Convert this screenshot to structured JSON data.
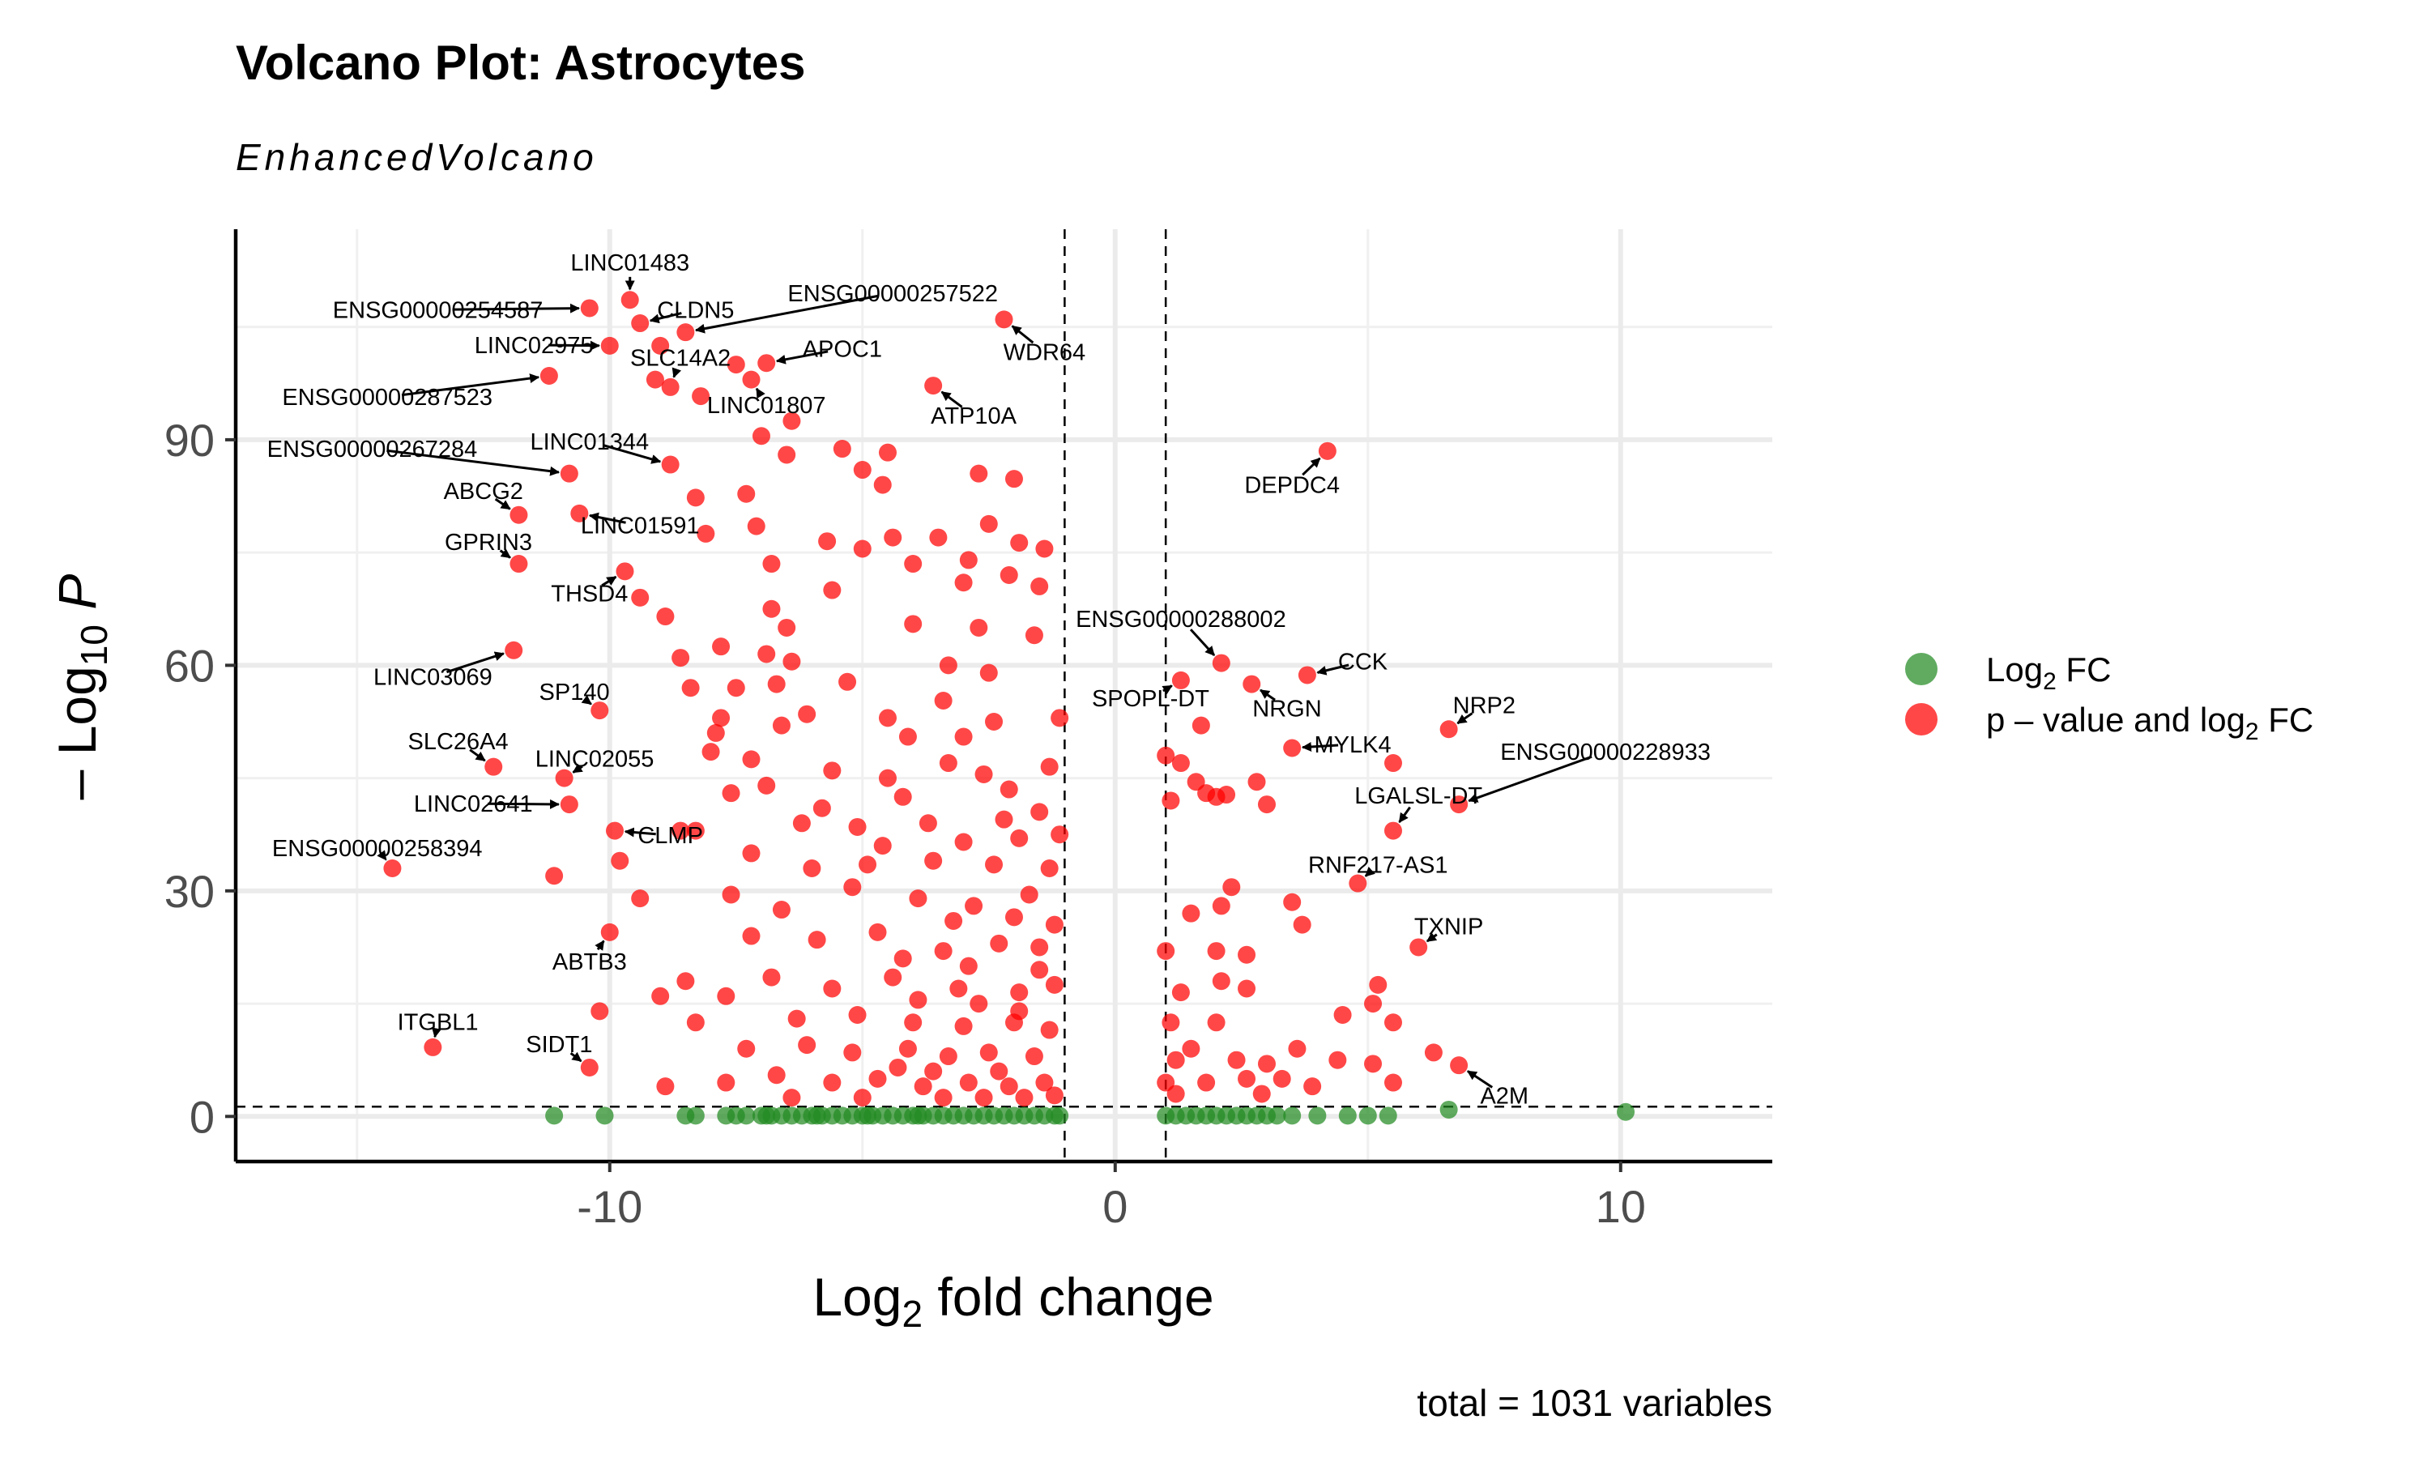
{
  "chart_data": {
    "type": "scatter",
    "title": "Volcano Plot: Astrocytes",
    "subtitle": "EnhancedVolcano",
    "xlabel": {
      "prefix": "Log",
      "sub": "2",
      "suffix": " fold change"
    },
    "ylabel": {
      "prefix": "– Log",
      "sub": "10",
      "suffix": "P"
    },
    "caption": "total = 1031 variables",
    "xlim": [
      -17.4,
      13
    ],
    "ylim": [
      -6,
      118
    ],
    "xticks": [
      -10,
      0,
      10
    ],
    "xtick_labels": [
      "-10",
      "0",
      "10"
    ],
    "yticks": [
      0,
      30,
      60,
      90
    ],
    "ytick_labels": [
      "0",
      "30",
      "60",
      "90"
    ],
    "grid": true,
    "fc_cutoff": 1,
    "p_cutoff": 1.3,
    "legend_position": "right",
    "legend": [
      {
        "label_prefix": "Log",
        "label_sub": "2",
        "label_suffix": " FC",
        "color": "#228B22"
      },
      {
        "label_prefix": "p – value and log",
        "label_sub": "2",
        "label_suffix": " FC",
        "color": "#FF0000"
      }
    ],
    "colors": {
      "fc_only": "#228B22",
      "significant": "#FF0000"
    },
    "labeled_genes": [
      {
        "name": "LINC01483",
        "x": -9.6,
        "y": 108.6,
        "lx": -9.6,
        "ly": 113.6
      },
      {
        "name": "ENSG00000254587",
        "x": -10.4,
        "y": 107.5,
        "lx": -13.4,
        "ly": 107.3
      },
      {
        "name": "CLDN5",
        "x": -9.4,
        "y": 105.5,
        "lx": -8.3,
        "ly": 107.3
      },
      {
        "name": "ENSG00000257522",
        "x": -8.5,
        "y": 104.3,
        "lx": -4.4,
        "ly": 109.5
      },
      {
        "name": "WDR64",
        "x": -2.2,
        "y": 106.0,
        "lx": -1.4,
        "ly": 101.7
      },
      {
        "name": "LINC02975",
        "x": -10.0,
        "y": 102.5,
        "lx": -11.5,
        "ly": 102.6
      },
      {
        "name": "SLC14A2",
        "x": -8.8,
        "y": 97.0,
        "lx": -8.6,
        "ly": 100.9
      },
      {
        "name": "APOC1",
        "x": -6.9,
        "y": 100.2,
        "lx": -5.4,
        "ly": 102.1
      },
      {
        "name": "ENSG00000287523",
        "x": -11.2,
        "y": 98.5,
        "lx": -14.4,
        "ly": 95.7
      },
      {
        "name": "LINC01807",
        "x": -7.2,
        "y": 98.0,
        "lx": -6.9,
        "ly": 94.6
      },
      {
        "name": "ATP10A",
        "x": -3.6,
        "y": 97.2,
        "lx": -2.8,
        "ly": 93.2
      },
      {
        "name": "ENSG00000267284",
        "x": -10.8,
        "y": 85.5,
        "lx": -14.7,
        "ly": 88.8
      },
      {
        "name": "LINC01344",
        "x": -8.8,
        "y": 86.7,
        "lx": -10.4,
        "ly": 89.8
      },
      {
        "name": "DEPDC4",
        "x": 4.2,
        "y": 88.5,
        "lx": 3.5,
        "ly": 84.0
      },
      {
        "name": "ABCG2",
        "x": -11.8,
        "y": 80.0,
        "lx": -12.5,
        "ly": 83.2
      },
      {
        "name": "LINC01591",
        "x": -10.6,
        "y": 80.2,
        "lx": -9.4,
        "ly": 78.6
      },
      {
        "name": "GPRIN3",
        "x": -11.8,
        "y": 73.5,
        "lx": -12.4,
        "ly": 76.4
      },
      {
        "name": "THSD4",
        "x": -9.7,
        "y": 72.5,
        "lx": -10.4,
        "ly": 69.6
      },
      {
        "name": "ENSG00000288002",
        "x": 2.1,
        "y": 60.3,
        "lx": 1.3,
        "ly": 66.2
      },
      {
        "name": "CCK",
        "x": 3.8,
        "y": 58.7,
        "lx": 4.9,
        "ly": 60.5
      },
      {
        "name": "LINC03069",
        "x": -11.9,
        "y": 62.0,
        "lx": -13.5,
        "ly": 58.5
      },
      {
        "name": "SP140",
        "x": -10.2,
        "y": 54.0,
        "lx": -10.7,
        "ly": 56.5
      },
      {
        "name": "SPOPL-DT",
        "x": 1.3,
        "y": 58.0,
        "lx": 0.7,
        "ly": 55.6
      },
      {
        "name": "NRGN",
        "x": 2.7,
        "y": 57.5,
        "lx": 3.4,
        "ly": 54.3
      },
      {
        "name": "NRP2",
        "x": 6.6,
        "y": 51.5,
        "lx": 7.3,
        "ly": 54.7
      },
      {
        "name": "SLC26A4",
        "x": -12.3,
        "y": 46.5,
        "lx": -13.0,
        "ly": 49.9
      },
      {
        "name": "LINC02055",
        "x": -10.9,
        "y": 45.0,
        "lx": -10.3,
        "ly": 47.6
      },
      {
        "name": "MYLK4",
        "x": 3.5,
        "y": 49.0,
        "lx": 4.7,
        "ly": 49.5
      },
      {
        "name": "ENSG00000228933",
        "x": 6.8,
        "y": 41.5,
        "lx": 9.7,
        "ly": 48.5
      },
      {
        "name": "LINC02641",
        "x": -10.8,
        "y": 41.5,
        "lx": -12.7,
        "ly": 41.6
      },
      {
        "name": "LGALSL-DT",
        "x": 5.5,
        "y": 38.0,
        "lx": 6.0,
        "ly": 42.7
      },
      {
        "name": "CLMP",
        "x": -9.9,
        "y": 38.0,
        "lx": -8.8,
        "ly": 37.4
      },
      {
        "name": "ENSG00000258394",
        "x": -14.3,
        "y": 33.0,
        "lx": -14.6,
        "ly": 35.7
      },
      {
        "name": "RNF217-AS1",
        "x": 4.8,
        "y": 31.0,
        "lx": 5.2,
        "ly": 33.5
      },
      {
        "name": "TXNIP",
        "x": 6.0,
        "y": 22.5,
        "lx": 6.6,
        "ly": 25.3
      },
      {
        "name": "ABTB3",
        "x": -10.0,
        "y": 24.5,
        "lx": -10.4,
        "ly": 20.6
      },
      {
        "name": "ITGBL1",
        "x": -13.5,
        "y": 9.2,
        "lx": -13.4,
        "ly": 12.6
      },
      {
        "name": "SIDT1",
        "x": -10.4,
        "y": 6.5,
        "lx": -11.0,
        "ly": 9.6
      },
      {
        "name": "A2M",
        "x": 6.8,
        "y": 6.8,
        "lx": 7.7,
        "ly": 2.8
      }
    ],
    "unlabeled_points": {
      "note_significant_region": "remaining red points: |log2FC| > 1 and -log10 P > 1.3",
      "red_points": [
        [
          -9.0,
          102.5
        ],
        [
          -9.1,
          98.0
        ],
        [
          -8.2,
          95.8
        ],
        [
          -7.5,
          100.0
        ],
        [
          -6.4,
          92.5
        ],
        [
          -7.0,
          90.5
        ],
        [
          -5.4,
          88.8
        ],
        [
          -4.5,
          88.3
        ],
        [
          -5.0,
          86.0
        ],
        [
          -4.6,
          84.0
        ],
        [
          -2.7,
          85.5
        ],
        [
          -2.0,
          84.8
        ],
        [
          -6.5,
          88.0
        ],
        [
          -8.3,
          82.3
        ],
        [
          -7.3,
          82.8
        ],
        [
          -7.1,
          78.5
        ],
        [
          -5.7,
          76.5
        ],
        [
          -5.0,
          75.5
        ],
        [
          -4.4,
          77.0
        ],
        [
          -3.5,
          77.0
        ],
        [
          -2.5,
          78.8
        ],
        [
          -1.9,
          76.3
        ],
        [
          -1.4,
          75.5
        ],
        [
          -4.0,
          73.5
        ],
        [
          -2.9,
          74.0
        ],
        [
          -6.8,
          73.5
        ],
        [
          -8.1,
          77.5
        ],
        [
          -5.6,
          70.0
        ],
        [
          -3.0,
          71.0
        ],
        [
          -2.1,
          72.0
        ],
        [
          -1.5,
          70.5
        ],
        [
          -9.4,
          69.0
        ],
        [
          -8.9,
          66.5
        ],
        [
          -6.8,
          67.5
        ],
        [
          -6.5,
          65.0
        ],
        [
          -4.0,
          65.5
        ],
        [
          -2.7,
          65.0
        ],
        [
          -1.6,
          64.0
        ],
        [
          -3.3,
          60.0
        ],
        [
          -7.8,
          62.5
        ],
        [
          -6.9,
          61.5
        ],
        [
          -8.6,
          61.0
        ],
        [
          -6.4,
          60.5
        ],
        [
          -2.5,
          59.0
        ],
        [
          -8.4,
          57.0
        ],
        [
          -7.5,
          57.0
        ],
        [
          -6.7,
          57.5
        ],
        [
          -5.3,
          57.8
        ],
        [
          -3.4,
          55.3
        ],
        [
          -7.8,
          53.0
        ],
        [
          -6.1,
          53.5
        ],
        [
          -4.5,
          53.0
        ],
        [
          -2.4,
          52.5
        ],
        [
          -1.1,
          53.0
        ],
        [
          -7.9,
          51.0
        ],
        [
          -6.6,
          52.0
        ],
        [
          -4.1,
          50.5
        ],
        [
          -3.0,
          50.5
        ],
        [
          -8.0,
          48.5
        ],
        [
          -7.2,
          47.5
        ],
        [
          -5.6,
          46.0
        ],
        [
          -4.5,
          45.0
        ],
        [
          -3.3,
          47.0
        ],
        [
          -2.6,
          45.5
        ],
        [
          -1.3,
          46.5
        ],
        [
          -6.9,
          44.0
        ],
        [
          -5.8,
          41.0
        ],
        [
          -4.2,
          42.5
        ],
        [
          -2.1,
          43.5
        ],
        [
          -7.6,
          43.0
        ],
        [
          -8.3,
          38.0
        ],
        [
          -6.2,
          39.0
        ],
        [
          -5.1,
          38.5
        ],
        [
          -3.7,
          39.0
        ],
        [
          -2.2,
          39.5
        ],
        [
          -1.5,
          40.5
        ],
        [
          -9.8,
          34.0
        ],
        [
          -8.6,
          38.0
        ],
        [
          -7.2,
          35.0
        ],
        [
          -6.0,
          33.0
        ],
        [
          -4.9,
          33.5
        ],
        [
          -3.6,
          34.0
        ],
        [
          -2.4,
          33.5
        ],
        [
          -1.3,
          33.0
        ],
        [
          -9.4,
          29.0
        ],
        [
          -7.6,
          29.5
        ],
        [
          -6.6,
          27.5
        ],
        [
          -5.2,
          30.5
        ],
        [
          -3.9,
          29.0
        ],
        [
          -2.8,
          28.0
        ],
        [
          -1.7,
          29.5
        ],
        [
          -11.1,
          32.0
        ],
        [
          -7.2,
          24.0
        ],
        [
          -5.9,
          23.5
        ],
        [
          -4.7,
          24.5
        ],
        [
          -3.4,
          22.0
        ],
        [
          -2.3,
          23.0
        ],
        [
          -1.5,
          22.5
        ],
        [
          -8.5,
          18.0
        ],
        [
          -6.8,
          18.5
        ],
        [
          -5.6,
          17.0
        ],
        [
          -4.4,
          18.5
        ],
        [
          -3.1,
          17.0
        ],
        [
          -1.9,
          16.5
        ],
        [
          -1.2,
          17.5
        ],
        [
          -10.2,
          14.0
        ],
        [
          -9.0,
          16.0
        ],
        [
          -7.7,
          16.0
        ],
        [
          -6.3,
          13.0
        ],
        [
          -5.1,
          13.5
        ],
        [
          -4.0,
          12.5
        ],
        [
          -3.0,
          12.0
        ],
        [
          -2.0,
          12.5
        ],
        [
          -1.3,
          11.5
        ],
        [
          -8.3,
          12.5
        ],
        [
          -7.3,
          9.0
        ],
        [
          -6.1,
          9.5
        ],
        [
          -5.2,
          8.5
        ],
        [
          -4.1,
          9.0
        ],
        [
          -3.3,
          8.0
        ],
        [
          -2.5,
          8.5
        ],
        [
          -1.6,
          8.0
        ],
        [
          -8.9,
          4.0
        ],
        [
          -7.7,
          4.5
        ],
        [
          -6.7,
          5.5
        ],
        [
          -5.6,
          4.5
        ],
        [
          -4.7,
          5.0
        ],
        [
          -3.8,
          4.0
        ],
        [
          -2.9,
          4.5
        ],
        [
          -2.1,
          4.0
        ],
        [
          -1.4,
          4.5
        ],
        [
          -6.4,
          2.5
        ],
        [
          -5.0,
          2.5
        ],
        [
          -3.4,
          2.5
        ],
        [
          -2.6,
          2.5
        ],
        [
          -1.8,
          2.5
        ],
        [
          -1.2,
          2.8
        ],
        [
          -4.3,
          6.5
        ],
        [
          -3.6,
          6.0
        ],
        [
          -2.3,
          6.0
        ],
        [
          -1.9,
          14.0
        ],
        [
          -2.7,
          15.0
        ],
        [
          -3.9,
          15.5
        ],
        [
          -1.5,
          19.5
        ],
        [
          -2.9,
          20.0
        ],
        [
          -4.2,
          21.0
        ],
        [
          -1.2,
          25.5
        ],
        [
          -2.0,
          26.5
        ],
        [
          -3.2,
          26.0
        ],
        [
          -1.1,
          37.5
        ],
        [
          -1.9,
          37.0
        ],
        [
          -3.0,
          36.5
        ],
        [
          -4.6,
          36.0
        ],
        [
          1.0,
          48.0
        ],
        [
          1.3,
          47.0
        ],
        [
          1.6,
          44.5
        ],
        [
          1.8,
          43.0
        ],
        [
          2.0,
          42.5
        ],
        [
          1.1,
          42.0
        ],
        [
          1.7,
          52.0
        ],
        [
          2.8,
          44.5
        ],
        [
          3.0,
          41.5
        ],
        [
          2.3,
          30.5
        ],
        [
          2.1,
          28.0
        ],
        [
          1.5,
          27.0
        ],
        [
          3.5,
          28.5
        ],
        [
          3.7,
          25.5
        ],
        [
          1.0,
          22.0
        ],
        [
          2.0,
          22.0
        ],
        [
          2.6,
          21.5
        ],
        [
          2.1,
          18.0
        ],
        [
          1.3,
          16.5
        ],
        [
          2.6,
          17.0
        ],
        [
          1.1,
          12.5
        ],
        [
          2.0,
          12.5
        ],
        [
          5.2,
          17.5
        ],
        [
          5.1,
          15.0
        ],
        [
          4.5,
          13.5
        ],
        [
          5.5,
          12.5
        ],
        [
          1.5,
          9.0
        ],
        [
          3.6,
          9.0
        ],
        [
          6.3,
          8.5
        ],
        [
          1.2,
          7.5
        ],
        [
          2.4,
          7.5
        ],
        [
          3.0,
          7.0
        ],
        [
          4.4,
          7.5
        ],
        [
          5.1,
          7.0
        ],
        [
          1.0,
          4.5
        ],
        [
          1.8,
          4.5
        ],
        [
          2.6,
          5.0
        ],
        [
          3.3,
          5.0
        ],
        [
          3.9,
          4.0
        ],
        [
          5.5,
          4.5
        ],
        [
          1.2,
          3.0
        ],
        [
          2.9,
          3.0
        ],
        [
          5.5,
          47.0
        ],
        [
          2.2,
          42.8
        ]
      ],
      "green_points": [
        [
          -11.1,
          0.1
        ],
        [
          -10.1,
          0.1
        ],
        [
          -8.5,
          0.1
        ],
        [
          -8.3,
          0.1
        ],
        [
          -7.7,
          0.1
        ],
        [
          -7.5,
          0.1
        ],
        [
          -7.0,
          0.1
        ],
        [
          -6.8,
          0.1
        ],
        [
          -6.6,
          0.1
        ],
        [
          -6.4,
          0.1
        ],
        [
          -6.2,
          0.1
        ],
        [
          -6.0,
          0.1
        ],
        [
          -5.8,
          0.1
        ],
        [
          -5.6,
          0.1
        ],
        [
          -5.4,
          0.1
        ],
        [
          -5.2,
          0.1
        ],
        [
          -5.0,
          0.1
        ],
        [
          -4.8,
          0.1
        ],
        [
          -4.6,
          0.1
        ],
        [
          -4.4,
          0.1
        ],
        [
          -4.2,
          0.1
        ],
        [
          -4.0,
          0.1
        ],
        [
          -3.8,
          0.1
        ],
        [
          -3.6,
          0.1
        ],
        [
          -3.4,
          0.1
        ],
        [
          -3.2,
          0.1
        ],
        [
          -3.0,
          0.1
        ],
        [
          -2.8,
          0.1
        ],
        [
          -2.6,
          0.1
        ],
        [
          -2.4,
          0.1
        ],
        [
          -2.2,
          0.1
        ],
        [
          -2.0,
          0.1
        ],
        [
          -1.8,
          0.1
        ],
        [
          -1.6,
          0.1
        ],
        [
          -1.4,
          0.1
        ],
        [
          -1.2,
          0.1
        ],
        [
          -1.1,
          0.1
        ],
        [
          -7.3,
          0.1
        ],
        [
          -6.9,
          0.1
        ],
        [
          -5.9,
          0.1
        ],
        [
          -4.9,
          0.1
        ],
        [
          -3.9,
          0.1
        ],
        [
          1.0,
          0.1
        ],
        [
          1.2,
          0.1
        ],
        [
          1.4,
          0.1
        ],
        [
          1.6,
          0.1
        ],
        [
          1.8,
          0.1
        ],
        [
          2.0,
          0.1
        ],
        [
          2.2,
          0.1
        ],
        [
          2.4,
          0.1
        ],
        [
          2.6,
          0.1
        ],
        [
          2.8,
          0.1
        ],
        [
          3.0,
          0.1
        ],
        [
          3.2,
          0.1
        ],
        [
          3.5,
          0.1
        ],
        [
          4.0,
          0.1
        ],
        [
          4.6,
          0.1
        ],
        [
          5.0,
          0.1
        ],
        [
          5.4,
          0.1
        ],
        [
          6.6,
          0.9
        ],
        [
          10.1,
          0.6
        ]
      ]
    }
  }
}
